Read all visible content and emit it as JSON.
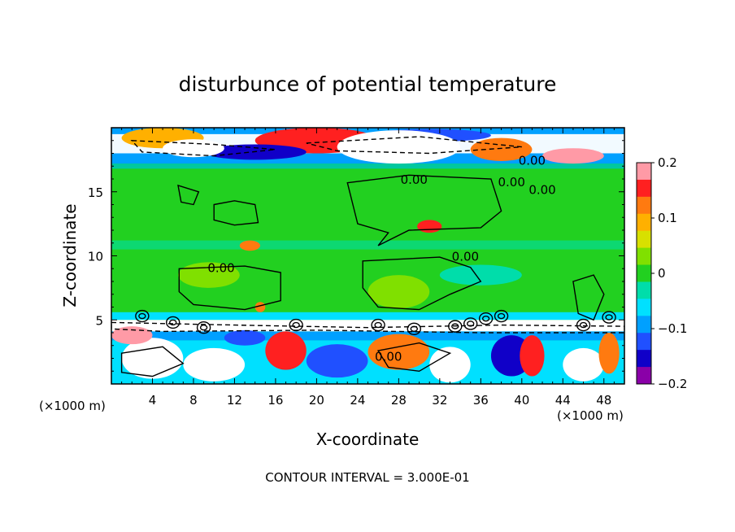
{
  "chart_data": {
    "type": "heatmap",
    "title": "disturbunce of potential temperature",
    "xlabel": "X-coordinate",
    "ylabel": "Z-coordinate",
    "x_unit": "(×1000 m)",
    "y_unit": "(×1000 m)",
    "xlim": [
      0,
      50
    ],
    "ylim": [
      0,
      20
    ],
    "x_ticks": [
      4,
      8,
      12,
      16,
      20,
      24,
      28,
      32,
      36,
      40,
      44,
      48
    ],
    "y_ticks": [
      5,
      10,
      15
    ],
    "colorbar": {
      "min": -0.2,
      "max": 0.2,
      "tick_values": [
        0.2,
        0.1,
        0,
        -0.1,
        -0.2
      ],
      "tick_labels": [
        "0.2",
        "0.1",
        "0",
        "−0.1",
        "−0.2"
      ],
      "colors": [
        "#ff9aa6",
        "#ff2020",
        "#ff7a10",
        "#ffb000",
        "#d8e000",
        "#80e000",
        "#22d020",
        "#00ddaa",
        "#00e0ff",
        "#00a0ff",
        "#2050ff",
        "#1000c8",
        "#8a00a8"
      ]
    },
    "contour_interval_text": "CONTOUR INTERVAL = 3.000E-01",
    "contour_labels": [
      {
        "text": "0.00",
        "x": 41,
        "z": 17.5
      },
      {
        "text": "0.00",
        "x": 29.5,
        "z": 16.0
      },
      {
        "text": "0.00",
        "x": 39.0,
        "z": 15.8
      },
      {
        "text": "0.00",
        "x": 42.0,
        "z": 15.2
      },
      {
        "text": "0.00",
        "x": 34.5,
        "z": 10.0
      },
      {
        "text": "0.00",
        "x": 10.7,
        "z": 9.1
      },
      {
        "text": "0.00",
        "x": 27.0,
        "z": 2.2
      }
    ]
  }
}
